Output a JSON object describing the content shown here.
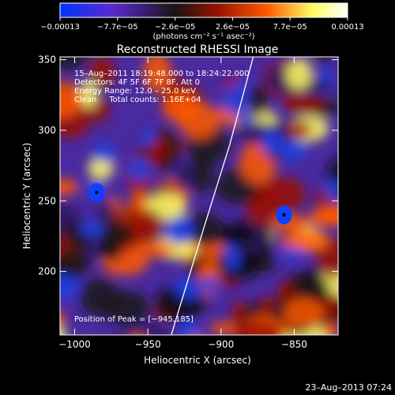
{
  "chart_data": {
    "type": "heatmap",
    "title": "Reconstructed RHESSI Image",
    "xlabel": "Heliocentric X (arcsec)",
    "ylabel": "Heliocentric Y (arcsec)",
    "xlim": [
      -1010,
      -820
    ],
    "ylim": [
      155,
      352
    ],
    "x_ticks": [
      -1000,
      -950,
      -900,
      -850
    ],
    "y_ticks": [
      200,
      250,
      300,
      350
    ],
    "x_tick_labels": [
      "−1000",
      "−950",
      "−900",
      "−850"
    ],
    "y_tick_labels": [
      "200",
      "250",
      "300",
      "350"
    ],
    "colorbar": {
      "min": -0.00013,
      "max": 0.00013,
      "tick_labels": [
        "−0.00013",
        "−7.7e−05",
        "−2.6e−05",
        "2.6e−05",
        "7.7e−05",
        "0.00013"
      ],
      "units_label": "(photons cm⁻² s⁻¹ asec⁻²)",
      "colors": [
        "#0033ff",
        "#5a2bd0",
        "#1a1414",
        "#9a1200",
        "#ff5a00",
        "#ffff66",
        "#ffffff"
      ]
    },
    "annotations": {
      "time_range": "15–Aug–2011 18:19:48.000 to 18:24:22.000",
      "detectors": "Detectors: 4F 5F 6F 7F 8F, Att 0",
      "energy_range": "Energy Range: 12.0 – 25.0 keV",
      "clean_counts": "Clean     Total counts: 1.16E+04",
      "peak_position": "Position of Peak = [−945,185]"
    },
    "peaks_marked": [
      {
        "x": -985,
        "y": 256
      },
      {
        "x": -857,
        "y": 240
      }
    ],
    "limb_curve": [
      [
        -934,
        155
      ],
      [
        -912,
        230
      ],
      [
        -894,
        290
      ],
      [
        -878,
        352
      ]
    ]
  },
  "footer": {
    "timestamp": "23–Aug–2013 07:24"
  }
}
